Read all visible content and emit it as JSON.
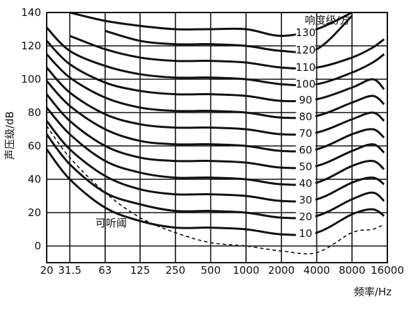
{
  "chart_data": {
    "type": "line",
    "title": "",
    "xlabel": "频率/Hz",
    "ylabel": "声压级/dB",
    "x_scale": "log",
    "xlim": [
      20,
      16000
    ],
    "ylim": [
      -10,
      140
    ],
    "x_ticks": [
      {
        "value": 20,
        "label": "20"
      },
      {
        "value": 31.5,
        "label": "31.5"
      },
      {
        "value": 63,
        "label": "63"
      },
      {
        "value": 125,
        "label": "125"
      },
      {
        "value": 250,
        "label": "250"
      },
      {
        "value": 500,
        "label": "500"
      },
      {
        "value": 1000,
        "label": "1000"
      },
      {
        "value": 2000,
        "label": "2000"
      },
      {
        "value": 4000,
        "label": "4000"
      },
      {
        "value": 8000,
        "label": "8000"
      },
      {
        "value": 16000,
        "label": "16000"
      }
    ],
    "y_ticks": [
      0,
      20,
      40,
      60,
      80,
      100,
      120,
      140
    ],
    "grid": true,
    "legend_title": "响度级/方",
    "threshold_label": "可听阈",
    "x_points": [
      20,
      31.5,
      63,
      125,
      250,
      500,
      1000,
      2000,
      4000,
      8000,
      12000,
      15000
    ],
    "series": [
      {
        "name": "130",
        "values": [
          null,
          140,
          135,
          132,
          130,
          130,
          130,
          126,
          130,
          140,
          null,
          null
        ]
      },
      {
        "name": "120",
        "values": [
          null,
          null,
          129,
          123,
          121,
          121,
          120,
          117,
          118,
          138,
          null,
          null
        ]
      },
      {
        "name": "110",
        "values": [
          null,
          126,
          118,
          113,
          111,
          111,
          110,
          107,
          107,
          113,
          119,
          124
        ]
      },
      {
        "name": "100",
        "values": [
          131,
          117,
          108,
          103,
          101,
          101,
          100,
          97,
          97,
          104,
          110,
          115
        ]
      },
      {
        "name": "90",
        "values": [
          123,
          109,
          98,
          93,
          91,
          91,
          90,
          87,
          88,
          95,
          100,
          94
        ]
      },
      {
        "name": "80",
        "values": [
          115,
          101,
          89,
          83,
          81,
          81,
          80,
          77,
          78,
          86,
          90,
          85
        ]
      },
      {
        "name": "70",
        "values": [
          107,
          92,
          79,
          73,
          71,
          71,
          70,
          67,
          68,
          76,
          80,
          75
        ]
      },
      {
        "name": "60",
        "values": [
          99,
          84,
          70,
          63,
          61,
          61,
          60,
          57,
          58,
          67,
          70,
          65
        ]
      },
      {
        "name": "50",
        "values": [
          91,
          75,
          60,
          53,
          51,
          51,
          50,
          47,
          48,
          57,
          61,
          56
        ]
      },
      {
        "name": "40",
        "values": [
          83,
          67,
          51,
          44,
          41,
          41,
          40,
          37,
          38,
          48,
          51,
          46
        ]
      },
      {
        "name": "30",
        "values": [
          75,
          58,
          42,
          34,
          31,
          31,
          30,
          27,
          28,
          38,
          41,
          37
        ]
      },
      {
        "name": "20",
        "values": [
          67,
          49,
          32,
          25,
          21,
          21,
          20,
          17,
          18,
          28,
          32,
          27
        ]
      },
      {
        "name": "10",
        "values": [
          58,
          40,
          23,
          15,
          11,
          11,
          10,
          7,
          8,
          19,
          22,
          18
        ]
      },
      {
        "name": "可听阈",
        "style": "dashed",
        "values": [
          72,
          53,
          32,
          17,
          8,
          2,
          0,
          -3,
          -4,
          8,
          10,
          13
        ]
      }
    ]
  }
}
